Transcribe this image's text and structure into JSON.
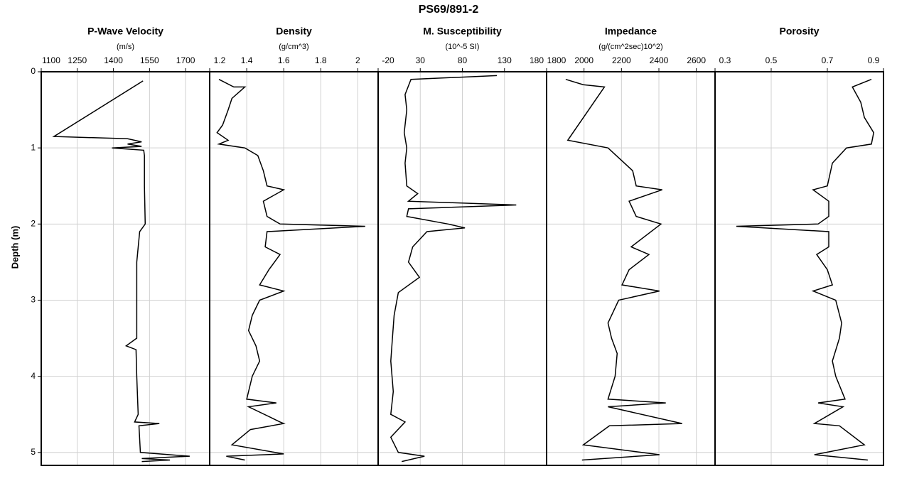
{
  "title": "PS69/891-2",
  "ylabel": "Depth (m)",
  "chart_data": [
    {
      "type": "line",
      "title": "P-Wave Velocity",
      "subtitle": "(m/s)",
      "color": "#000000",
      "grid": true,
      "xlim": [
        1100,
        1800
      ],
      "xticks": [
        1100,
        1250,
        1400,
        1550,
        1700
      ],
      "ylim": [
        0,
        5.17
      ],
      "yticks": [
        0,
        1,
        2,
        3,
        4,
        5
      ],
      "y": [
        0.12,
        0.85,
        0.88,
        0.92,
        0.95,
        0.98,
        1.0,
        1.03,
        1.1,
        1.5,
        2.0,
        2.1,
        2.5,
        3.0,
        3.5,
        3.6,
        3.65,
        4.0,
        4.5,
        4.6,
        4.62,
        4.65,
        5.0,
        5.05,
        5.08,
        5.1,
        5.12
      ],
      "values": [
        1523,
        1153,
        1459,
        1517,
        1459,
        1517,
        1394,
        1526,
        1529,
        1529,
        1532,
        1509,
        1497,
        1497,
        1497,
        1453,
        1494,
        1497,
        1503,
        1488,
        1591,
        1506,
        1512,
        1717,
        1518,
        1635,
        1518
      ]
    },
    {
      "type": "line",
      "title": "Density",
      "subtitle": "(g/cm^3)",
      "color": "#000000",
      "grid": true,
      "xlim": [
        1.2,
        2.11
      ],
      "xticks": [
        1.2,
        1.4,
        1.6,
        1.8,
        2.0
      ],
      "y": [
        0.1,
        0.2,
        0.2,
        0.35,
        0.5,
        0.7,
        0.8,
        0.9,
        0.95,
        1.0,
        1.1,
        1.3,
        1.5,
        1.55,
        1.7,
        1.9,
        2.0,
        2.03,
        2.1,
        2.3,
        2.4,
        2.6,
        2.8,
        2.88,
        3.0,
        3.2,
        3.4,
        3.6,
        3.8,
        4.0,
        4.3,
        4.35,
        4.4,
        4.6,
        4.62,
        4.7,
        4.9,
        5.02,
        5.05,
        5.1
      ],
      "values": [
        1.25,
        1.33,
        1.39,
        1.32,
        1.3,
        1.27,
        1.24,
        1.3,
        1.25,
        1.39,
        1.46,
        1.49,
        1.51,
        1.6,
        1.49,
        1.51,
        1.58,
        2.04,
        1.51,
        1.5,
        1.58,
        1.52,
        1.47,
        1.6,
        1.47,
        1.43,
        1.41,
        1.45,
        1.47,
        1.43,
        1.4,
        1.56,
        1.41,
        1.58,
        1.6,
        1.42,
        1.32,
        1.6,
        1.29,
        1.39
      ]
    },
    {
      "type": "line",
      "title": "M. Susceptibility",
      "subtitle": "(10^-5 SI)",
      "color": "#000000",
      "grid": true,
      "xlim": [
        -20,
        180
      ],
      "xticks": [
        -20,
        30,
        80,
        130,
        180
      ],
      "y": [
        0.05,
        0.1,
        0.3,
        0.5,
        0.8,
        1.0,
        1.2,
        1.5,
        1.6,
        1.7,
        1.75,
        1.8,
        1.9,
        2.0,
        2.05,
        2.1,
        2.3,
        2.5,
        2.7,
        2.9,
        3.2,
        3.5,
        3.8,
        4.2,
        4.5,
        4.6,
        4.8,
        5.0,
        5.05,
        5.12
      ],
      "values": [
        121,
        19,
        12,
        14,
        11,
        14,
        12,
        14,
        27,
        16,
        144,
        16,
        14,
        63,
        83,
        38,
        21,
        16,
        29,
        4,
        -1,
        -3,
        -5,
        -2,
        -5,
        12,
        -5,
        4,
        35,
        8
      ]
    },
    {
      "type": "line",
      "title": "Impedance",
      "subtitle": "(g/(cm^2sec)10^2)",
      "color": "#000000",
      "grid": true,
      "xlim": [
        1800,
        2700
      ],
      "xticks": [
        1800,
        2000,
        2200,
        2400,
        2600
      ],
      "y": [
        0.1,
        0.17,
        0.2,
        0.9,
        1.0,
        1.3,
        1.5,
        1.55,
        1.7,
        1.9,
        2.0,
        2.3,
        2.4,
        2.6,
        2.8,
        2.88,
        3.0,
        3.3,
        3.5,
        3.7,
        4.0,
        4.3,
        4.35,
        4.4,
        4.62,
        4.65,
        4.9,
        5.03,
        5.1
      ],
      "values": [
        1902,
        1996,
        2109,
        1913,
        2128,
        2260,
        2279,
        2418,
        2241,
        2279,
        2411,
        2252,
        2347,
        2241,
        2203,
        2403,
        2185,
        2128,
        2147,
        2177,
        2166,
        2128,
        2437,
        2128,
        2524,
        2136,
        1996,
        2403,
        1989
      ]
    },
    {
      "type": "line",
      "title": "Porosity",
      "color": "#000000",
      "grid": true,
      "xlim": [
        0.3,
        0.9
      ],
      "xticks": [
        0.3,
        0.5,
        0.7,
        0.9
      ],
      "y": [
        0.1,
        0.2,
        0.4,
        0.6,
        0.8,
        0.95,
        1.0,
        1.2,
        1.5,
        1.55,
        1.7,
        1.9,
        2.0,
        2.03,
        2.1,
        2.3,
        2.4,
        2.6,
        2.8,
        2.88,
        3.0,
        3.3,
        3.5,
        3.8,
        4.0,
        4.3,
        4.35,
        4.4,
        4.62,
        4.65,
        4.9,
        5.03,
        5.1
      ],
      "values": [
        0.857,
        0.789,
        0.819,
        0.832,
        0.865,
        0.857,
        0.768,
        0.718,
        0.7,
        0.649,
        0.705,
        0.705,
        0.667,
        0.376,
        0.705,
        0.705,
        0.662,
        0.7,
        0.718,
        0.649,
        0.73,
        0.751,
        0.743,
        0.718,
        0.73,
        0.763,
        0.667,
        0.756,
        0.654,
        0.743,
        0.832,
        0.654,
        0.844
      ]
    }
  ]
}
